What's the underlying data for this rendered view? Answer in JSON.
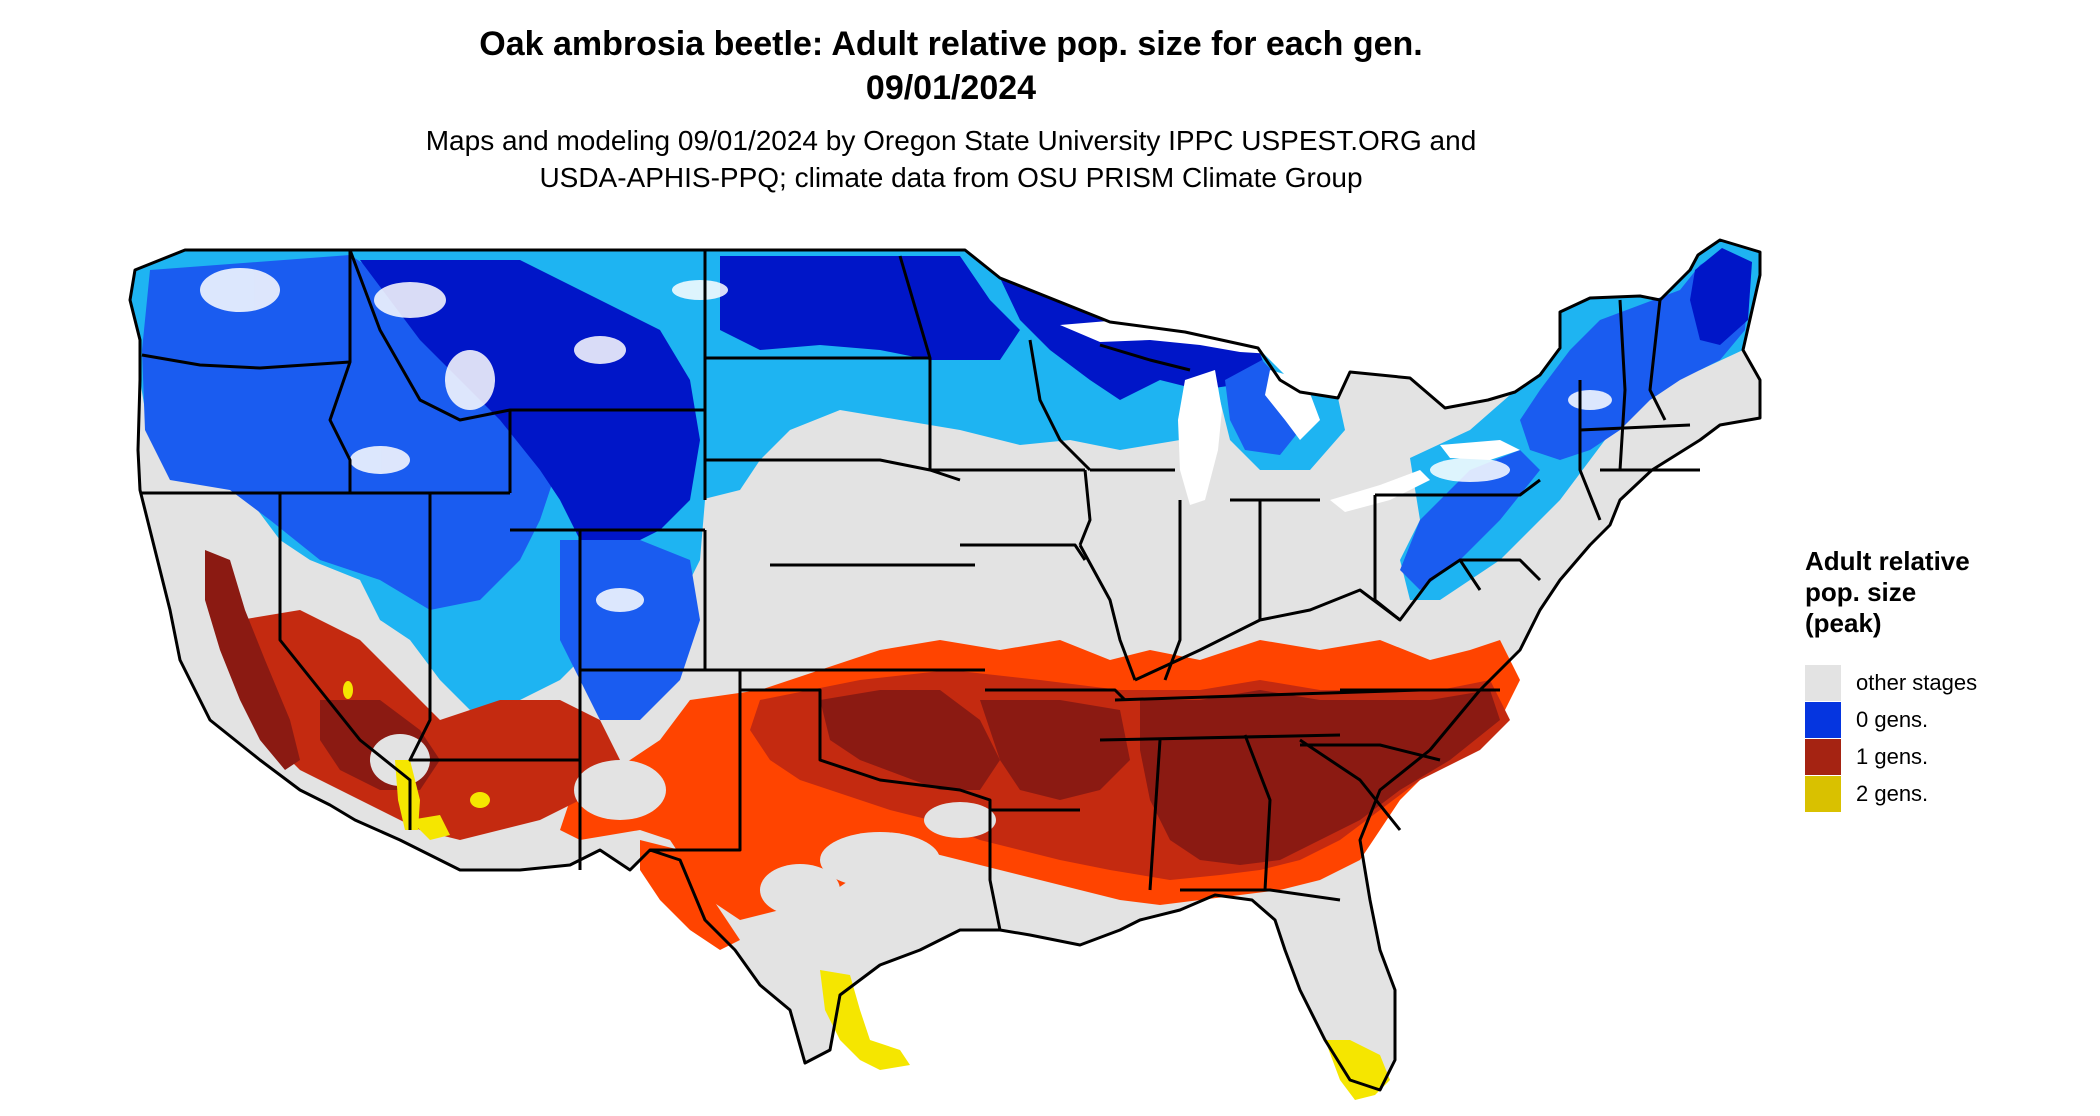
{
  "title_lines": [
    "Oak ambrosia beetle: Adult relative pop. size for each gen.",
    "09/01/2024"
  ],
  "subtitle_lines": [
    "Maps and modeling 09/01/2024 by Oregon State University IPPC USPEST.ORG and",
    "USDA-APHIS-PPQ; climate data from OSU PRISM Climate Group"
  ],
  "legend": {
    "title_lines": [
      "Adult relative",
      "pop. size",
      "(peak)"
    ],
    "items": [
      {
        "label": "other stages",
        "color": "#e3e3e3"
      },
      {
        "label": "0 gens.",
        "color": "#0535e0"
      },
      {
        "label": "1 gens.",
        "color": "#a52312"
      },
      {
        "label": "2 gens.",
        "color": "#d9c100"
      }
    ]
  },
  "map_colors": {
    "other_stages": "#e3e3e3",
    "zero_dark": "#0016c8",
    "zero_mid": "#1a5cf0",
    "zero_light": "#1eb4f2",
    "zero_white": "#ffffff",
    "one_dark": "#8b1a12",
    "one_mid": "#c42a10",
    "one_light": "#ff4400",
    "two": "#f5e600",
    "boundary": "#000000"
  }
}
